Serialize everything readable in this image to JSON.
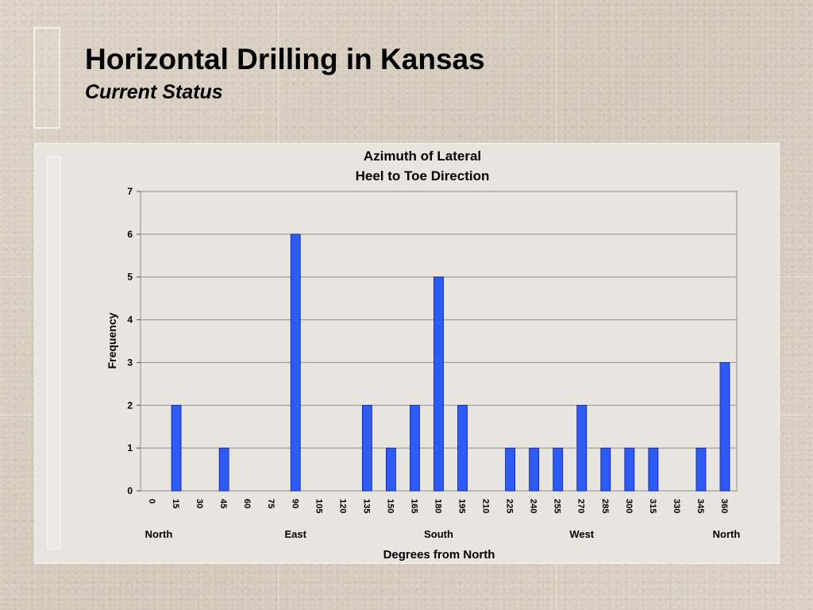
{
  "slide": {
    "title": "Horizontal Drilling in Kansas",
    "subtitle": "Current Status"
  },
  "chart_data": {
    "type": "bar",
    "title": "Azimuth of Lateral",
    "subtitle": "Heel to Toe Direction",
    "xlabel": "Degrees from North",
    "ylabel": "Frequency",
    "categories": [
      "0",
      "15",
      "30",
      "45",
      "60",
      "75",
      "90",
      "105",
      "120",
      "135",
      "150",
      "165",
      "180",
      "195",
      "210",
      "225",
      "240",
      "255",
      "270",
      "285",
      "300",
      "315",
      "330",
      "345",
      "360"
    ],
    "values": [
      0,
      2,
      0,
      1,
      0,
      0,
      6,
      0,
      0,
      2,
      1,
      2,
      5,
      2,
      0,
      1,
      1,
      1,
      2,
      1,
      1,
      1,
      0,
      1,
      3
    ],
    "ylim": [
      0,
      7
    ],
    "yticks": [
      "0",
      "1",
      "2",
      "3",
      "4",
      "5",
      "6",
      "7"
    ],
    "grid": true,
    "legend": "none",
    "bar_color": "#2f5bf5",
    "direction_labels": [
      {
        "label": "North",
        "category": "0"
      },
      {
        "label": "East",
        "category": "90"
      },
      {
        "label": "South",
        "category": "180"
      },
      {
        "label": "West",
        "category": "270"
      },
      {
        "label": "North",
        "category": "360"
      }
    ]
  }
}
